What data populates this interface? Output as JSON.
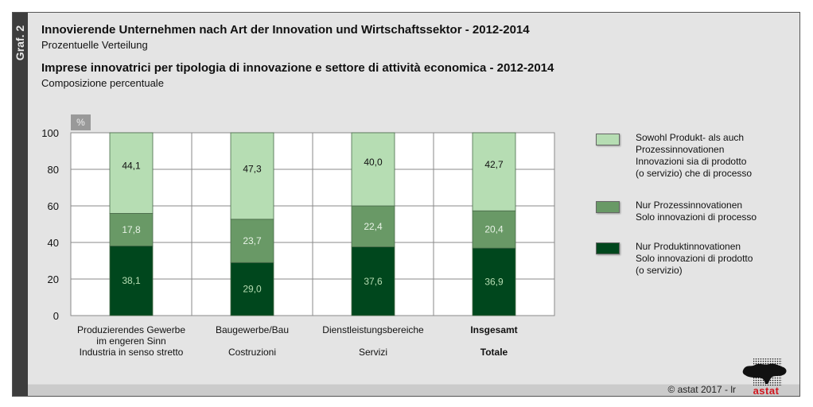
{
  "side_label": "Graf. 2",
  "titles": {
    "title_de": "Innovierende Unternehmen nach Art der Innovation und Wirtschaftssektor - 2012-2014",
    "subtitle_de": "Prozentuelle Verteilung",
    "title_it": "Imprese innovatrici per tipologia di innovazione e settore di attività economica - 2012-2014",
    "subtitle_it": "Composizione percentuale"
  },
  "footer": {
    "copyright": "© astat 2017 - lr",
    "logo_text": "astat"
  },
  "colors": {
    "both": "#b6ddb3",
    "process": "#699966",
    "product": "#00471d",
    "frame": "#e4e4e4",
    "side": "#3d3d3d",
    "logo_red": "#d0161e"
  },
  "chart_data": {
    "type": "bar",
    "stacked": true,
    "title": "Innovierende Unternehmen nach Art der Innovation und Wirtschaftssektor - 2012-2014",
    "unit_label": "%",
    "ylim": [
      0,
      100
    ],
    "yticks": [
      0,
      20,
      40,
      60,
      80,
      100
    ],
    "grid": true,
    "legend_position": "right",
    "categories": [
      {
        "lines_de": [
          "Produzierendes Gewerbe",
          "im engeren Sinn"
        ],
        "line_it": "Industria in senso stretto",
        "bold": false
      },
      {
        "lines_de": [
          "Baugewerbe/Bau"
        ],
        "line_it": "Costruzioni",
        "bold": false
      },
      {
        "lines_de": [
          "Dienstleistungsbereiche"
        ],
        "line_it": "Servizi",
        "bold": false
      },
      {
        "lines_de": [
          "Insgesamt"
        ],
        "line_it": "Totale",
        "bold": true
      }
    ],
    "series": [
      {
        "key": "product",
        "name_lines": [
          "Nur Produktinnovationen",
          "Solo innovazioni di prodotto",
          "(o servizio)"
        ],
        "values": [
          38.1,
          29.0,
          37.6,
          36.9
        ],
        "labels": [
          "38,1",
          "29,0",
          "37,6",
          "36,9"
        ]
      },
      {
        "key": "process",
        "name_lines": [
          "Nur Prozessinnovationen",
          "Solo innovazioni di processo"
        ],
        "values": [
          17.8,
          23.7,
          22.4,
          20.4
        ],
        "labels": [
          "17,8",
          "23,7",
          "22,4",
          "20,4"
        ]
      },
      {
        "key": "both",
        "name_lines": [
          "Sowohl Produkt- als auch",
          "Prozessinnovationen",
          "Innovazioni sia di prodotto",
          "(o servizio) che di processo"
        ],
        "values": [
          44.1,
          47.3,
          40.0,
          42.7
        ],
        "labels": [
          "44,1",
          "47,3",
          "40,0",
          "42,7"
        ]
      }
    ],
    "legend_order": [
      "both",
      "process",
      "product"
    ]
  }
}
